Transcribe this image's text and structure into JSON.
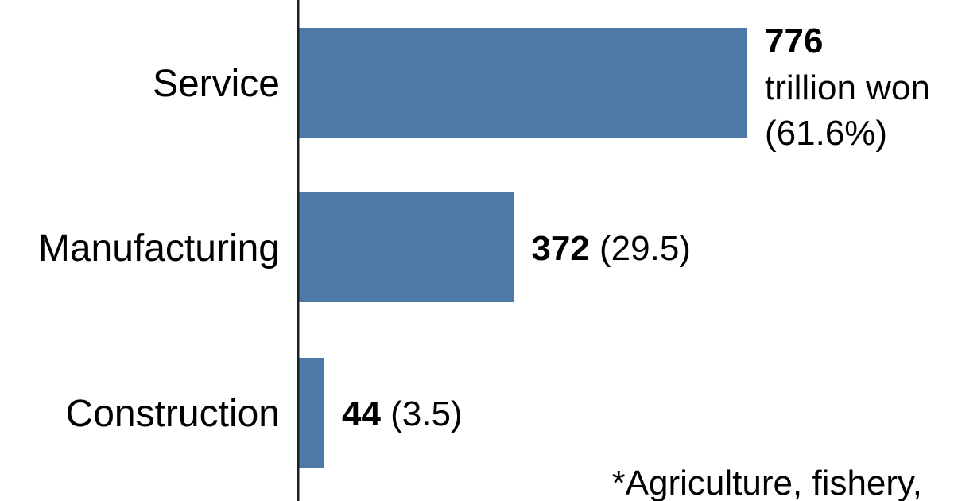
{
  "chart_data": {
    "type": "bar",
    "orientation": "horizontal",
    "categories": [
      "Service",
      "Manufacturing",
      "Construction"
    ],
    "values": [
      776,
      372,
      44
    ],
    "shares": [
      "61.6%",
      "29.5",
      "3.5"
    ],
    "unit": "trillion won",
    "bar_color": "#4d79a8",
    "labels": [
      {
        "value": "776",
        "lines": [
          "trillion won",
          "(61.6%)"
        ]
      },
      {
        "value": "372",
        "lines": [
          "(29.5)"
        ]
      },
      {
        "value": "44",
        "lines": [
          "(3.5)"
        ]
      }
    ],
    "footnote": "*Agriculture, fishery,",
    "xlim": [
      0,
      800
    ],
    "grid": false,
    "legend": "none"
  }
}
